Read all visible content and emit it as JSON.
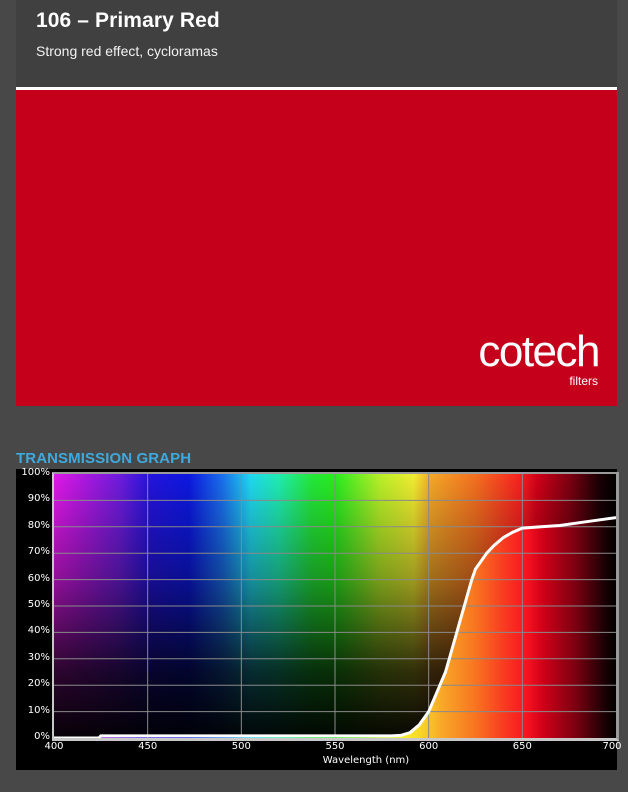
{
  "header": {
    "title": "106 – Primary Red",
    "subtitle": "Strong red effect, cycloramas"
  },
  "swatch": {
    "color": "#c4001a",
    "logo": {
      "brand": "cotech",
      "tagline": "filters"
    }
  },
  "section": {
    "title": "TRANSMISSION GRAPH",
    "title_color": "#3fa9dc"
  },
  "chart_data": {
    "type": "line",
    "title": "TRANSMISSION GRAPH",
    "xlabel": "Wavelength (nm)",
    "ylabel": "",
    "xlim": [
      400,
      700
    ],
    "ylim": [
      0,
      100
    ],
    "grid": true,
    "xticks": [
      "400",
      "450",
      "500",
      "550",
      "600",
      "650",
      "700"
    ],
    "yticks": [
      "0%",
      "10%",
      "20%",
      "30%",
      "40%",
      "50%",
      "60%",
      "70%",
      "80%",
      "90%",
      "100%"
    ],
    "series": [
      {
        "name": "Transmission",
        "x": [
          400,
          424,
          425,
          450,
          500,
          550,
          580,
          585,
          590,
          595,
          600,
          603,
          606,
          609,
          611,
          613,
          615,
          617,
          619,
          621,
          623,
          625,
          628,
          631,
          635,
          640,
          645,
          650,
          660,
          670,
          680,
          690,
          700
        ],
        "y": [
          0,
          0,
          0.8,
          0.8,
          0.8,
          0.8,
          0.8,
          1,
          2,
          5,
          10,
          15,
          20,
          25,
          30,
          35,
          40,
          45,
          50,
          55,
          60,
          64,
          67,
          70,
          73,
          76,
          78,
          79.5,
          80,
          80.5,
          81.5,
          82.5,
          83.5
        ]
      }
    ]
  }
}
